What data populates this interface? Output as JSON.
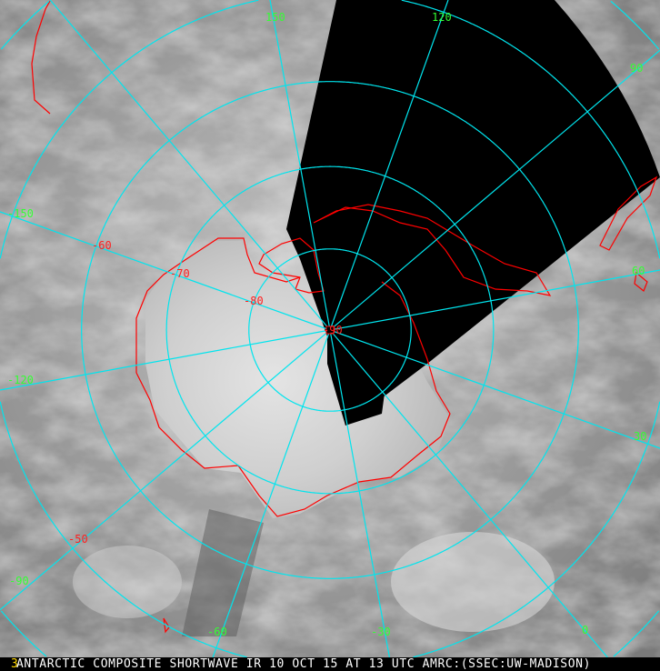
{
  "caption": "ANTARCTIC COMPOSITE SHORTWAVE IR 10 OCT 15 AT 13 UTC AMRC:(SSEC:UW-MADISON)",
  "logo_glyph": "3",
  "projection": "polar stereographic, south pole",
  "grid": {
    "latitudes": [
      -80,
      -70,
      -60,
      -50,
      -40,
      -30
    ],
    "longitudes": [
      0,
      30,
      60,
      90,
      120,
      150,
      180,
      -150,
      -120,
      -90,
      -60,
      -30
    ],
    "color": "#00e5ee"
  },
  "labels": {
    "lat": [
      "-90",
      "-80",
      "-70",
      "-60",
      "-50"
    ],
    "lon": [
      "150",
      "120",
      "90",
      "60",
      "30",
      "-150",
      "-120",
      "-90",
      "-60",
      "-30",
      "0"
    ]
  },
  "colors": {
    "coastline": "#ff0000",
    "lat_labels": "#ff2020",
    "lon_labels": "#33ff33",
    "no_data": "#000000"
  }
}
